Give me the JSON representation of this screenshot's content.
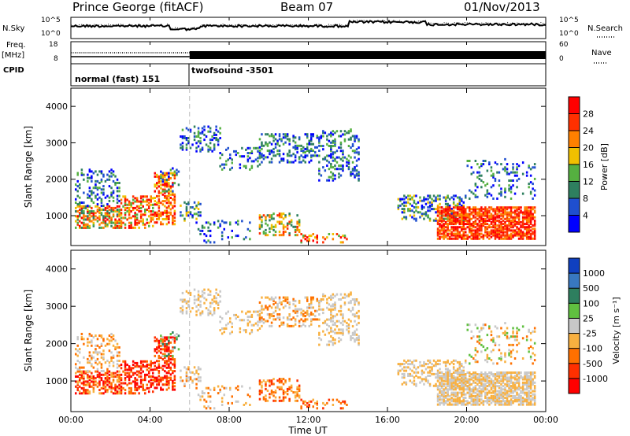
{
  "header": {
    "station": "Prince George (fitACF)",
    "beam": "Beam 07",
    "date": "01/Nov/2013"
  },
  "side_labels": {
    "nsky": "N.Sky",
    "freq_line1": "Freq.",
    "freq_line2": "[MHz]",
    "cpid": "CPID",
    "nsearch": "N.Search",
    "nave": "Nave"
  },
  "cpid_segments": [
    {
      "label": "normal (fast) 151",
      "start_hour": 0
    },
    {
      "label": "twofsound -3501",
      "start_hour": 6
    }
  ],
  "noise_panel": {
    "left_ticks": [
      "10^5",
      "10^0"
    ],
    "right_ticks": [
      "10^5",
      "10^0"
    ]
  },
  "freq_panel": {
    "left_ticks": [
      "18",
      "8"
    ],
    "right_ticks": [
      "60",
      "0"
    ]
  },
  "chart_data": [
    {
      "type": "heatmap",
      "ylabel": "Slant Range [km]",
      "y_ticks": [
        "1000",
        "2000",
        "3000",
        "4000"
      ],
      "colorbar_label": "Power [dB]",
      "colorbar_ticks": [
        "4",
        "8",
        "12",
        "16",
        "20",
        "24",
        "28"
      ],
      "colors": [
        "#0000ff",
        "#1f4fcf",
        "#2e7f5f",
        "#55b040",
        "#f0c000",
        "#ff8000",
        "#ff3000",
        "#ff0000"
      ]
    },
    {
      "type": "heatmap",
      "ylabel": "Slant Range [km]",
      "xlabel": "Time UT",
      "x_ticks": [
        "00:00",
        "04:00",
        "08:00",
        "12:00",
        "16:00",
        "20:00",
        "00:00"
      ],
      "y_ticks": [
        "1000",
        "2000",
        "3000",
        "4000"
      ],
      "colorbar_label": "Velocity [m s⁻¹]",
      "colorbar_ticks": [
        "1000",
        "500",
        "100",
        "25",
        "-25",
        "-100",
        "-500",
        "-1000"
      ],
      "colors": [
        "#1040c0",
        "#3878c0",
        "#2e7f5f",
        "#60c040",
        "#c8c8c8",
        "#f8b040",
        "#ff7000",
        "#ff3000",
        "#ff0000"
      ]
    }
  ]
}
